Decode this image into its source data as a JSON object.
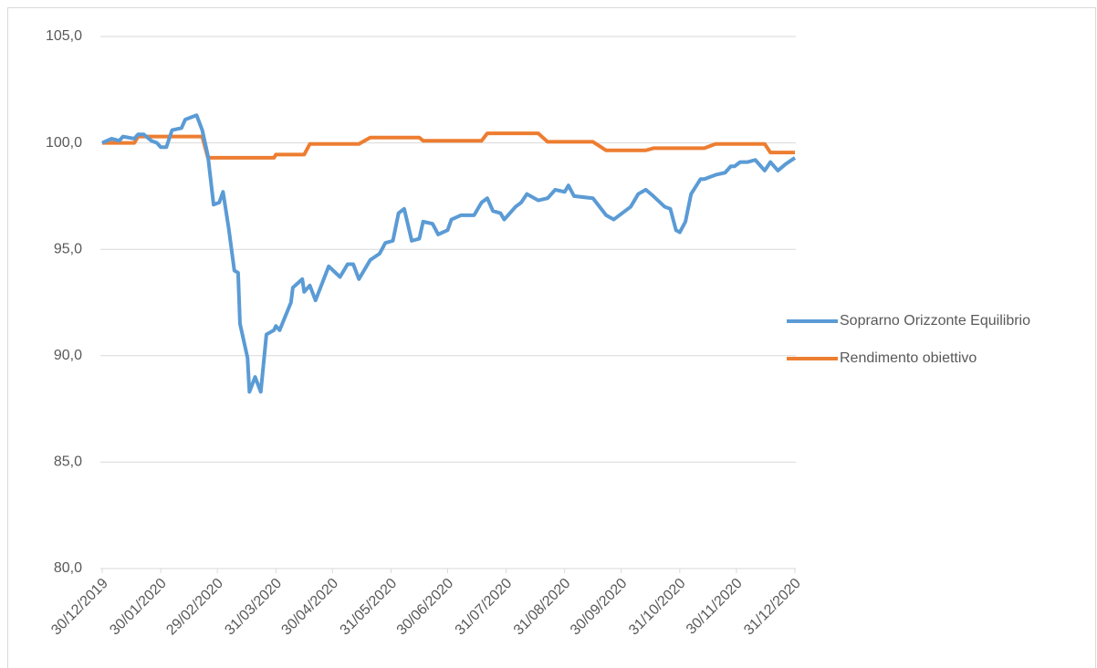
{
  "chart_data": {
    "type": "line",
    "x": [
      "30/12/2019",
      "04/01/2020",
      "08/01/2020",
      "10/01/2020",
      "16/01/2020",
      "18/01/2020",
      "21/01/2020",
      "25/01/2020",
      "28/01/2020",
      "30/01/2020",
      "02/02/2020",
      "05/02/2020",
      "10/02/2020",
      "12/02/2020",
      "18/02/2020",
      "21/02/2020",
      "24/02/2020",
      "27/02/2020",
      "01/03/2020",
      "03/03/2020",
      "06/03/2020",
      "09/03/2020",
      "11/03/2020",
      "12/03/2020",
      "16/03/2020",
      "17/03/2020",
      "20/03/2020",
      "23/03/2020",
      "26/03/2020",
      "30/03/2020",
      "31/03/2020",
      "02/04/2020",
      "08/04/2020",
      "09/04/2020",
      "14/04/2020",
      "15/04/2020",
      "18/04/2020",
      "21/04/2020",
      "28/04/2020",
      "04/05/2020",
      "08/05/2020",
      "11/05/2020",
      "14/05/2020",
      "20/05/2020",
      "25/05/2020",
      "28/05/2020",
      "01/06/2020",
      "04/06/2020",
      "07/06/2020",
      "11/06/2020",
      "15/06/2020",
      "17/06/2020",
      "22/06/2020",
      "25/06/2020",
      "30/06/2020",
      "02/07/2020",
      "07/07/2020",
      "14/07/2020",
      "18/07/2020",
      "21/07/2020",
      "24/07/2020",
      "28/07/2020",
      "30/07/2020",
      "05/08/2020",
      "08/08/2020",
      "11/08/2020",
      "17/08/2020",
      "22/08/2020",
      "26/08/2020",
      "31/08/2020",
      "02/09/2020",
      "05/09/2020",
      "15/09/2020",
      "22/09/2020",
      "26/09/2020",
      "05/10/2020",
      "09/10/2020",
      "13/10/2020",
      "17/10/2020",
      "23/10/2020",
      "26/10/2020",
      "29/10/2020",
      "31/10/2020",
      "03/11/2020",
      "06/11/2020",
      "11/11/2020",
      "13/11/2020",
      "19/11/2020",
      "24/11/2020",
      "27/11/2020",
      "29/11/2020",
      "02/12/2020",
      "06/12/2020",
      "10/12/2020",
      "15/12/2020",
      "18/12/2020",
      "22/12/2020",
      "26/12/2020",
      "31/12/2020"
    ],
    "series": [
      {
        "name": "Soprarno Orizzonte Equilibrio",
        "color": "#5b9bd5",
        "values": [
          100.0,
          100.2,
          100.1,
          100.3,
          100.2,
          100.4,
          100.4,
          100.1,
          100.0,
          99.8,
          99.8,
          100.6,
          100.7,
          101.1,
          101.3,
          100.6,
          99.4,
          97.1,
          97.2,
          97.7,
          96.0,
          94.0,
          93.9,
          91.5,
          89.9,
          88.3,
          89.0,
          88.3,
          91.0,
          91.2,
          91.4,
          91.2,
          92.5,
          93.2,
          93.6,
          93.0,
          93.3,
          92.6,
          94.2,
          93.7,
          94.3,
          94.3,
          93.6,
          94.5,
          94.8,
          95.3,
          95.4,
          96.7,
          96.9,
          95.4,
          95.5,
          96.3,
          96.2,
          95.7,
          95.9,
          96.4,
          96.6,
          96.6,
          97.2,
          97.4,
          96.8,
          96.7,
          96.4,
          97.0,
          97.2,
          97.6,
          97.3,
          97.4,
          97.8,
          97.7,
          98.0,
          97.5,
          97.4,
          96.6,
          96.4,
          97.0,
          97.6,
          97.8,
          97.5,
          97.0,
          96.9,
          95.9,
          95.8,
          96.3,
          97.6,
          98.3,
          98.3,
          98.5,
          98.6,
          98.9,
          98.9,
          99.1,
          99.1,
          99.2,
          98.7,
          99.1,
          98.7,
          99.0,
          99.3
        ]
      },
      {
        "name": "Rendimento obiettivo",
        "color": "#ed7d31",
        "values": [
          100.0,
          100.0,
          100.0,
          100.0,
          100.0,
          100.3,
          100.3,
          100.3,
          100.3,
          100.3,
          100.3,
          100.3,
          100.3,
          100.3,
          100.3,
          100.3,
          99.3,
          99.3,
          99.3,
          99.3,
          99.3,
          99.3,
          99.3,
          99.3,
          99.3,
          99.3,
          99.3,
          99.3,
          99.3,
          99.3,
          99.45,
          99.45,
          99.45,
          99.45,
          99.45,
          99.45,
          99.95,
          99.95,
          99.95,
          99.95,
          99.95,
          99.95,
          99.95,
          100.25,
          100.25,
          100.25,
          100.25,
          100.25,
          100.25,
          100.25,
          100.25,
          100.1,
          100.1,
          100.1,
          100.1,
          100.1,
          100.1,
          100.1,
          100.1,
          100.45,
          100.45,
          100.45,
          100.45,
          100.45,
          100.45,
          100.45,
          100.45,
          100.05,
          100.05,
          100.05,
          100.05,
          100.05,
          100.05,
          99.65,
          99.65,
          99.65,
          99.65,
          99.65,
          99.75,
          99.75,
          99.75,
          99.75,
          99.75,
          99.75,
          99.75,
          99.75,
          99.75,
          99.95,
          99.95,
          99.95,
          99.95,
          99.95,
          99.95,
          99.95,
          99.95,
          99.55,
          99.55,
          99.55,
          99.55
        ]
      }
    ],
    "xlim": [
      "30/12/2019",
      "31/12/2020"
    ],
    "xticks": [
      "30/12/2019",
      "30/01/2020",
      "29/02/2020",
      "31/03/2020",
      "30/04/2020",
      "31/05/2020",
      "30/06/2020",
      "31/07/2020",
      "31/08/2020",
      "30/09/2020",
      "31/10/2020",
      "30/11/2020",
      "31/12/2020"
    ],
    "ylim": [
      80,
      105
    ],
    "yticks": [
      {
        "value": 80,
        "label": "80,0"
      },
      {
        "value": 85,
        "label": "85,0"
      },
      {
        "value": 90,
        "label": "90,0"
      },
      {
        "value": 95,
        "label": "95,0"
      },
      {
        "value": 100,
        "label": "100,0"
      },
      {
        "value": 105,
        "label": "105,0"
      }
    ],
    "grid": true,
    "legend": "right"
  }
}
